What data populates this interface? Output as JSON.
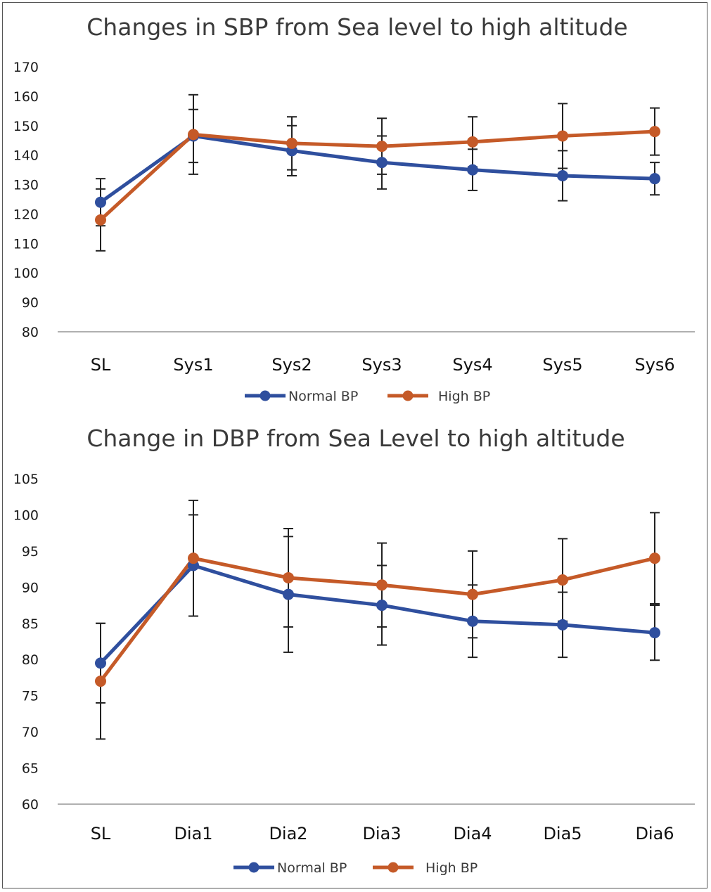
{
  "chart_data": [
    {
      "type": "line",
      "title": "Changes in SBP from Sea level to high altitude",
      "categories": [
        "SL",
        "Sys1",
        "Sys2",
        "Sys3",
        "Sys4",
        "Sys5",
        "Sys6"
      ],
      "ylim": [
        80,
        170
      ],
      "yticks": [
        80,
        90,
        100,
        110,
        120,
        130,
        140,
        150,
        160,
        170
      ],
      "grid": false,
      "legend": "bottom",
      "series": [
        {
          "name": "Normal BP",
          "color": "#2f4f9e",
          "values": [
            124,
            146.5,
            141.5,
            137.5,
            135,
            133,
            132
          ],
          "err": [
            8,
            9,
            8.5,
            9,
            7,
            8.5,
            5.5
          ]
        },
        {
          "name": "High BP",
          "color": "#c55a28",
          "values": [
            118,
            147,
            144,
            143,
            144.5,
            146.5,
            148
          ],
          "err": [
            10.5,
            13.5,
            9,
            9.5,
            8.5,
            11,
            8
          ]
        }
      ]
    },
    {
      "type": "line",
      "title": "Change in DBP from Sea Level to high altitude",
      "categories": [
        "SL",
        "Dia1",
        "Dia2",
        "Dia3",
        "Dia4",
        "Dia5",
        "Dia6"
      ],
      "ylim": [
        60,
        105
      ],
      "yticks": [
        60,
        65,
        70,
        75,
        80,
        85,
        90,
        95,
        100,
        105
      ],
      "grid": false,
      "legend": "bottom",
      "series": [
        {
          "name": "Normal BP",
          "color": "#2f4f9e",
          "values": [
            79.5,
            93,
            89,
            87.5,
            85.3,
            84.8,
            83.7
          ],
          "err": [
            5.5,
            7,
            8,
            5.5,
            5,
            4.5,
            3.8
          ]
        },
        {
          "name": "High BP",
          "color": "#c55a28",
          "values": [
            77,
            94,
            91.3,
            90.3,
            89,
            91,
            94
          ],
          "err": [
            8,
            8,
            6.8,
            5.8,
            6,
            5.7,
            6.3
          ]
        }
      ]
    }
  ]
}
